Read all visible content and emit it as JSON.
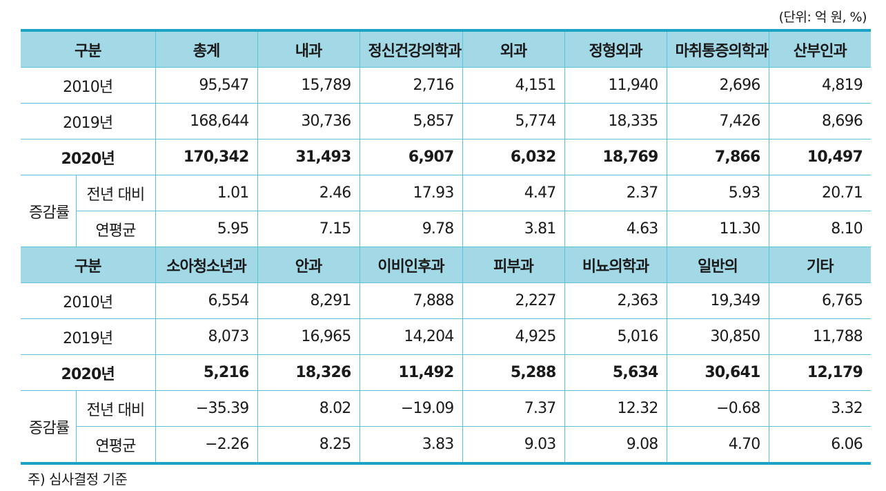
{
  "unit": "(단위: 억 원, %)",
  "note": "주) 심사결정 기준",
  "group_label": "증감률",
  "sections": [
    {
      "header": [
        "구분",
        "총계",
        "내과",
        "정신건강의학과",
        "외과",
        "정형외과",
        "마취통증의학과",
        "산부인과"
      ],
      "rows": [
        {
          "label": "2010년",
          "values": [
            "95,547",
            "15,789",
            "2,716",
            "4,151",
            "11,940",
            "2,696",
            "4,819"
          ]
        },
        {
          "label": "2019년",
          "values": [
            "168,644",
            "30,736",
            "5,857",
            "5,774",
            "18,335",
            "7,426",
            "8,696"
          ]
        },
        {
          "label": "2020년",
          "bold": true,
          "values": [
            "170,342",
            "31,493",
            "6,907",
            "6,032",
            "18,769",
            "7,866",
            "10,497"
          ]
        },
        {
          "label": "전년 대비",
          "values": [
            "1.01",
            "2.46",
            "17.93",
            "4.47",
            "2.37",
            "5.93",
            "20.71"
          ]
        },
        {
          "label": "연평균",
          "values": [
            "5.95",
            "7.15",
            "9.78",
            "3.81",
            "4.63",
            "11.30",
            "8.10"
          ]
        }
      ]
    },
    {
      "header": [
        "구분",
        "소아청소년과",
        "안과",
        "이비인후과",
        "피부과",
        "비뇨의학과",
        "일반의",
        "기타"
      ],
      "rows": [
        {
          "label": "2010년",
          "values": [
            "6,554",
            "8,291",
            "7,888",
            "2,227",
            "2,363",
            "19,349",
            "6,765"
          ]
        },
        {
          "label": "2019년",
          "values": [
            "8,073",
            "16,965",
            "14,204",
            "4,925",
            "5,016",
            "30,850",
            "11,788"
          ]
        },
        {
          "label": "2020년",
          "bold": true,
          "values": [
            "5,216",
            "18,326",
            "11,492",
            "5,288",
            "5,634",
            "30,641",
            "12,179"
          ]
        },
        {
          "label": "전년 대비",
          "values": [
            "−35.39",
            "8.02",
            "−19.09",
            "7.37",
            "12.32",
            "−0.68",
            "3.32"
          ]
        },
        {
          "label": "연평균",
          "values": [
            "−2.26",
            "8.25",
            "3.83",
            "9.03",
            "9.08",
            "4.70",
            "6.06"
          ]
        }
      ]
    }
  ]
}
